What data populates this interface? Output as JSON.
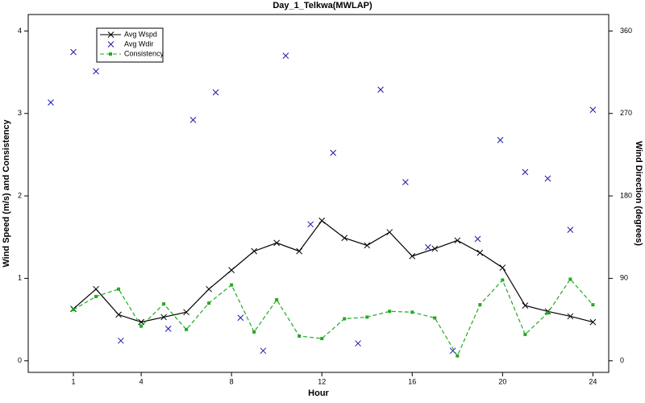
{
  "chart_data": {
    "type": "line",
    "title": "Day_1_Telkwa(MWLAP)",
    "x_label": "Hour",
    "y_label": "Wind Speed (m/s) and Consistency",
    "y2_label": "Wind Direction (degrees)",
    "xlim": [
      -1,
      24.7
    ],
    "xticks": [
      1,
      4,
      8,
      12,
      16,
      20,
      24
    ],
    "ylim": [
      -0.14,
      4.2
    ],
    "yticks": [
      0,
      1,
      2,
      3,
      4
    ],
    "y2lim": [
      -12.6,
      378
    ],
    "y2ticks": [
      0,
      90,
      180,
      270,
      360
    ],
    "legend": "upper left",
    "series": [
      {
        "name": "Avg Wspd",
        "color": "#000000",
        "style": "line-x",
        "x": [
          1,
          2,
          3,
          4,
          5,
          6,
          7,
          8,
          9,
          10,
          11,
          12,
          13,
          14,
          15,
          16,
          17,
          18,
          19,
          20,
          21,
          22,
          23,
          24
        ],
        "values": [
          0.63,
          0.87,
          0.56,
          0.47,
          0.53,
          0.59,
          0.87,
          1.1,
          1.33,
          1.43,
          1.33,
          1.7,
          1.49,
          1.4,
          1.56,
          1.27,
          1.36,
          1.46,
          1.31,
          1.13,
          0.67,
          0.6,
          0.54,
          0.47
        ]
      },
      {
        "name": "Avg Wdir",
        "color": "#1a1aa6",
        "style": "x",
        "axis": "y2",
        "x": [
          0,
          1,
          2,
          3.1,
          5.2,
          6.3,
          7.3,
          8.4,
          9.4,
          10.4,
          11.5,
          12.5,
          13.6,
          14.6,
          15.7,
          16.7,
          17.8,
          18.9,
          19.9,
          21,
          22,
          23,
          24
        ],
        "values": [
          282,
          337,
          316,
          22,
          35,
          263,
          293,
          47,
          11,
          333,
          149,
          227,
          19,
          296,
          195,
          124,
          11,
          133,
          241,
          206,
          199,
          143,
          274
        ]
      },
      {
        "name": "Consistency",
        "color": "#22aa22",
        "style": "dashed-square",
        "x": [
          1,
          2,
          3,
          4,
          5,
          6,
          7,
          8,
          9,
          10,
          11,
          12,
          13,
          14,
          15,
          16,
          17,
          18,
          19,
          20,
          21,
          22,
          23,
          24
        ],
        "values": [
          0.62,
          0.78,
          0.87,
          0.42,
          0.69,
          0.38,
          0.7,
          0.92,
          0.35,
          0.74,
          0.3,
          0.27,
          0.51,
          0.53,
          0.6,
          0.59,
          0.52,
          0.06,
          0.68,
          0.98,
          0.32,
          0.58,
          0.99,
          0.68
        ]
      }
    ]
  }
}
